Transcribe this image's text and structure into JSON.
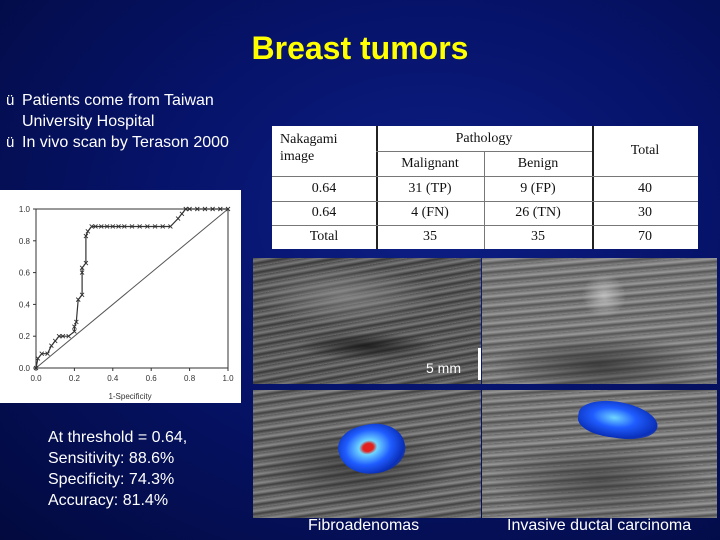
{
  "title": "Breast tumors",
  "bullets": [
    {
      "tick": "ü",
      "text": "Patients come from Taiwan University Hospital"
    },
    {
      "tick": "ü",
      "text": "In vivo scan by Terason 2000"
    }
  ],
  "table": {
    "header_col1": "Nakagami image",
    "header_group": "Pathology",
    "header_malignant": "Malignant",
    "header_benign": "Benign",
    "header_total": "Total",
    "rows": [
      {
        "label": "0.64",
        "malignant": "31 (TP)",
        "benign": "9 (FP)",
        "total": "40"
      },
      {
        "label": "0.64",
        "malignant": "4 (FN)",
        "benign": "26 (TN)",
        "total": "30"
      },
      {
        "label": "Total",
        "malignant": "35",
        "benign": "35",
        "total": "70"
      }
    ]
  },
  "stats": [
    "At threshold = 0.64,",
    "Sensitivity: 88.6%",
    "Specificity: 74.3%",
    "Accuracy: 81.4%"
  ],
  "scale_label": "5 mm",
  "caption_left": "Fibroadenomas",
  "caption_right": "Invasive ductal carcinoma",
  "chart_data": {
    "type": "line",
    "title": "",
    "xlabel": "1-Specificity",
    "ylabel": "",
    "xlim": [
      0,
      1
    ],
    "ylim": [
      0,
      1
    ],
    "xticks": [
      "0.0",
      "0.2",
      "0.4",
      "0.6",
      "0.8",
      "1.0"
    ],
    "yticks": [
      "0.0",
      "0.2",
      "0.4",
      "0.6",
      "0.8",
      "1.0"
    ],
    "grid": false,
    "series": [
      {
        "x": [
          0,
          0.01,
          0.03,
          0.06,
          0.08,
          0.1,
          0.12,
          0.14,
          0.17,
          0.2,
          0.2,
          0.21,
          0.22,
          0.24,
          0.24,
          0.24,
          0.26,
          0.26,
          0.27,
          0.29,
          0.31,
          0.34,
          0.37,
          0.4,
          0.43,
          0.46,
          0.5,
          0.54,
          0.58,
          0.62,
          0.66,
          0.7,
          0.74,
          0.76,
          0.78,
          0.8,
          0.84,
          0.88,
          0.92,
          0.96,
          1.0
        ],
        "y": [
          0,
          0.06,
          0.09,
          0.09,
          0.14,
          0.17,
          0.2,
          0.2,
          0.2,
          0.23,
          0.26,
          0.29,
          0.43,
          0.46,
          0.6,
          0.63,
          0.66,
          0.83,
          0.86,
          0.89,
          0.89,
          0.89,
          0.89,
          0.89,
          0.89,
          0.89,
          0.89,
          0.89,
          0.89,
          0.89,
          0.89,
          0.89,
          0.94,
          0.97,
          1.0,
          1.0,
          1.0,
          1.0,
          1.0,
          1.0,
          1.0
        ]
      },
      {
        "x": [
          0,
          1
        ],
        "y": [
          0,
          1
        ]
      }
    ]
  },
  "colors": {
    "title": "#ffff00",
    "doppler_blue": "#1f5cff",
    "doppler_light": "#6fd6ff",
    "doppler_red": "#e2201c"
  }
}
